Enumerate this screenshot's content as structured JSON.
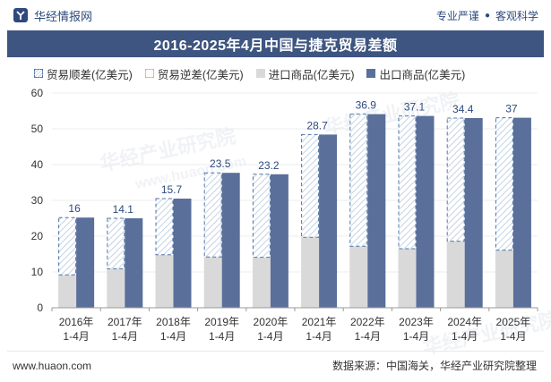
{
  "header": {
    "brand": "华经情报网",
    "tags": [
      "专业严谨",
      "客观科学"
    ]
  },
  "chart_data": {
    "type": "bar",
    "title": "2016-2025年4月中国与捷克贸易差额",
    "categories": [
      "2016年\n1-4月",
      "2017年\n1-4月",
      "2018年\n1-4月",
      "2019年\n1-4月",
      "2020年\n1-4月",
      "2021年\n1-4月",
      "2022年\n1-4月",
      "2023年\n1-4月",
      "2024年\n1-4月",
      "2025年\n1-4月"
    ],
    "series": [
      {
        "name": "贸易顺差(亿美元)",
        "values": [
          16,
          14.1,
          15.7,
          23.5,
          23.2,
          28.7,
          36.9,
          37.1,
          34.4,
          37
        ]
      },
      {
        "name": "贸易逆差(亿美元)",
        "values": [
          0,
          0,
          0,
          0,
          0,
          0,
          0,
          0,
          0,
          0
        ]
      },
      {
        "name": "进口商品(亿美元)",
        "values": [
          9.2,
          10.9,
          14.8,
          14.2,
          14.1,
          19.7,
          17.2,
          16.5,
          18.6,
          16.1
        ]
      },
      {
        "name": "出口商品(亿美元)",
        "values": [
          25.2,
          25.0,
          30.5,
          37.7,
          37.3,
          48.4,
          54.1,
          53.6,
          53.0,
          53.1
        ]
      }
    ],
    "data_labels": [
      "16",
      "14.1",
      "15.7",
      "23.5",
      "23.2",
      "28.7",
      "36.9",
      "37.1",
      "34.4",
      "37"
    ],
    "ylim": [
      0,
      60
    ],
    "yticks": [
      0,
      10,
      20,
      30,
      40,
      50,
      60
    ],
    "xlabel": "",
    "ylabel": "",
    "legend_position": "top",
    "colors": {
      "surplus_border": "#4f74a6",
      "surplus_hatch": "#c4d3e4",
      "deficit_border": "#d7b96e",
      "import": "#d9d9d9",
      "export": "#5a6f99",
      "label": "#2e4a7d"
    }
  },
  "footer": {
    "url": "www.huaon.com",
    "source": "数据来源：中国海关，华经产业研究院整理"
  },
  "watermarks": [
    "华经产业研究院",
    "www.huaon.com"
  ]
}
